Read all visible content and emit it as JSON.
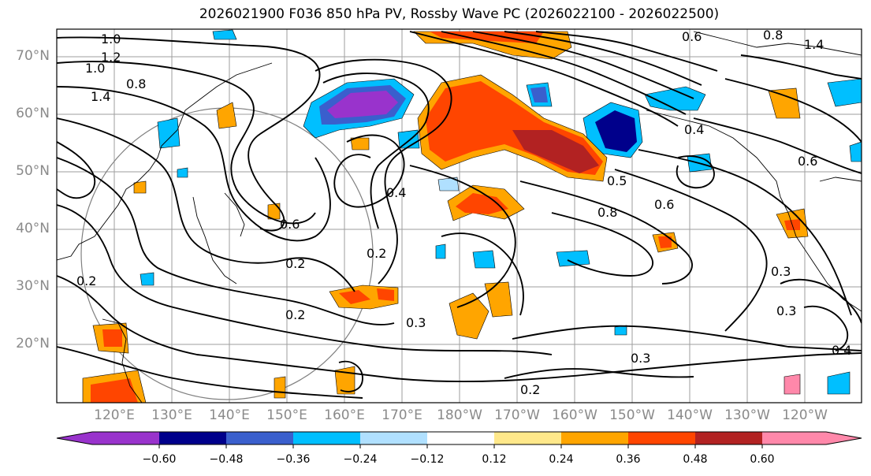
{
  "title": "2026021900 F036 850 hPa PV, Rossby Wave PC (2026022100 - 2026022500)",
  "map": {
    "lat_labels": [
      "70°N",
      "60°N",
      "50°N",
      "40°N",
      "30°N",
      "20°N"
    ],
    "lon_labels": [
      "120°E",
      "130°E",
      "140°E",
      "150°E",
      "160°E",
      "170°E",
      "180°W",
      "170°W",
      "160°W",
      "150°W",
      "140°W",
      "130°W",
      "120°W"
    ],
    "contour_labels": [
      "1.0",
      "1.0",
      "1.2",
      "1.4",
      "0.8",
      "0.2",
      "0.2",
      "0.2",
      "0.2",
      "0.3",
      "0.3",
      "0.3",
      "0.3",
      "0.4",
      "0.4",
      "0.5",
      "0.6",
      "0.6",
      "0.6",
      "0.8",
      "0.8",
      "1.4",
      "0.4",
      "0.6",
      "0.2"
    ]
  },
  "colorbar": {
    "tick_labels": [
      "−0.60",
      "−0.48",
      "−0.36",
      "−0.24",
      "−0.12",
      "0.12",
      "0.24",
      "0.36",
      "0.48",
      "0.60"
    ],
    "colors": [
      "#9933cc",
      "#00008b",
      "#3a5fcd",
      "#00bfff",
      "#b0e0ff",
      "#ffffff",
      "#ffe88a",
      "#ffa500",
      "#ff4500",
      "#b22222",
      "#ff88aa"
    ]
  }
}
